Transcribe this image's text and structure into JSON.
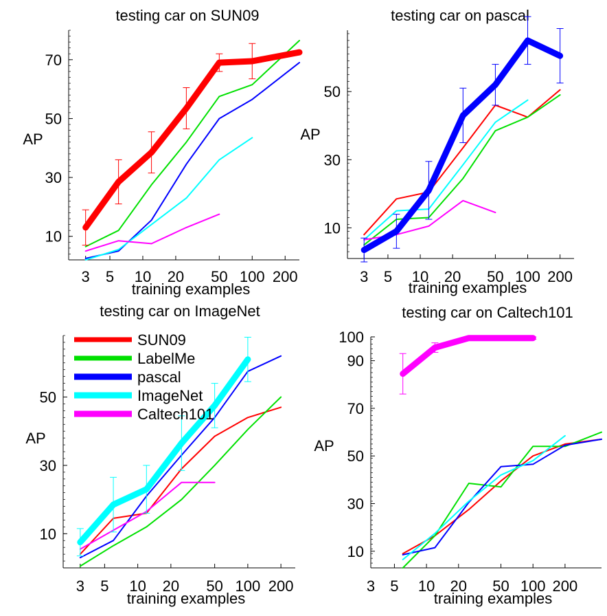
{
  "colors": {
    "SUN09": "#ff0000",
    "LabelMe": "#00e000",
    "pascal": "#0000ff",
    "ImageNet": "#00ffff",
    "Caltech101": "#ff00ff"
  },
  "legend": {
    "placement": "top-left of testing car on ImageNet panel",
    "entries": [
      "SUN09",
      "LabelMe",
      "pascal",
      "ImageNet",
      "Caltech101"
    ]
  },
  "chart_data": [
    {
      "type": "line",
      "title": "testing car on SUN09",
      "xlabel": "training examples",
      "ylabel": "AP",
      "xscale": "log",
      "xticks": [
        "3",
        "5",
        "10",
        "20",
        "50",
        "100",
        "200"
      ],
      "xlim": [
        2.1,
        270
      ],
      "yticks": [
        "10",
        "30",
        "50",
        "70"
      ],
      "ylim": [
        2,
        80
      ],
      "highlight": "SUN09",
      "series": [
        {
          "name": "SUN09",
          "x": [
            3,
            6,
            12,
            25,
            50,
            100,
            270
          ],
          "y": [
            13,
            28.5,
            38.5,
            53.5,
            69,
            69.5,
            72.5
          ],
          "err": [
            6,
            7.5,
            7,
            7,
            3,
            6,
            0
          ]
        },
        {
          "name": "LabelMe",
          "x": [
            3,
            6,
            12,
            25,
            50,
            100,
            270
          ],
          "y": [
            6.5,
            12,
            27.5,
            42,
            57.5,
            61.5,
            76.5
          ]
        },
        {
          "name": "pascal",
          "x": [
            3,
            6,
            12,
            25,
            50,
            100,
            270
          ],
          "y": [
            2.5,
            5,
            15.5,
            34.5,
            50,
            56.5,
            69
          ]
        },
        {
          "name": "ImageNet",
          "x": [
            3,
            6,
            12,
            25,
            50,
            100
          ],
          "y": [
            2,
            5.5,
            14,
            23,
            36,
            43.5
          ]
        },
        {
          "name": "Caltech101",
          "x": [
            3,
            6,
            12,
            25,
            50
          ],
          "y": [
            5,
            8.5,
            7.5,
            13,
            17.5
          ]
        }
      ]
    },
    {
      "type": "line",
      "title": "testing car on pascal",
      "xlabel": "training examples",
      "ylabel": "AP",
      "xscale": "log",
      "xticks": [
        "3",
        "5",
        "10",
        "20",
        "50",
        "100",
        "200"
      ],
      "xlim": [
        2.1,
        270
      ],
      "yticks": [
        "10",
        "30",
        "50"
      ],
      "ylim": [
        1,
        68
      ],
      "highlight": "pascal",
      "series": [
        {
          "name": "SUN09",
          "x": [
            3,
            6,
            12,
            25,
            50,
            100,
            200
          ],
          "y": [
            8,
            18.5,
            20.5,
            33.5,
            46,
            42.5,
            50.5
          ]
        },
        {
          "name": "LabelMe",
          "x": [
            3,
            6,
            12,
            25,
            50,
            100,
            200
          ],
          "y": [
            5,
            12.5,
            13,
            24.5,
            38.5,
            42.5,
            49
          ]
        },
        {
          "name": "pascal",
          "x": [
            3,
            6,
            12,
            25,
            50,
            100,
            200
          ],
          "y": [
            3.5,
            9,
            21,
            43,
            52,
            65,
            60.5
          ],
          "err": [
            3.5,
            5,
            8.5,
            8,
            6,
            7,
            8
          ]
        },
        {
          "name": "ImageNet",
          "x": [
            3,
            6,
            12,
            25,
            50,
            100
          ],
          "y": [
            6.5,
            15,
            15.5,
            28.5,
            41,
            47.5
          ]
        },
        {
          "name": "Caltech101",
          "x": [
            3,
            6,
            12,
            25,
            50
          ],
          "y": [
            6.5,
            8,
            10.5,
            18,
            14.5
          ]
        }
      ]
    },
    {
      "type": "line",
      "title": "testing car on ImageNet",
      "xlabel": "training examples",
      "ylabel": "AP",
      "xscale": "log",
      "xticks": [
        "3",
        "5",
        "10",
        "20",
        "50",
        "100",
        "200"
      ],
      "xlim": [
        2.1,
        270
      ],
      "yticks": [
        "10",
        "30",
        "50"
      ],
      "ylim": [
        0,
        68
      ],
      "highlight": "ImageNet",
      "series": [
        {
          "name": "SUN09",
          "x": [
            3,
            6,
            12,
            25,
            50,
            100,
            200
          ],
          "y": [
            4,
            14.5,
            16,
            29,
            38.5,
            44,
            47
          ]
        },
        {
          "name": "LabelMe",
          "x": [
            3,
            6,
            12,
            25,
            50,
            100,
            200
          ],
          "y": [
            0.5,
            6.5,
            12,
            20,
            30,
            40.5,
            50
          ]
        },
        {
          "name": "pascal",
          "x": [
            3,
            6,
            12,
            25,
            50,
            100,
            200
          ],
          "y": [
            3,
            8,
            21,
            33,
            44,
            57.5,
            62
          ]
        },
        {
          "name": "ImageNet",
          "x": [
            3,
            6,
            12,
            25,
            50,
            100
          ],
          "y": [
            7.5,
            18.5,
            23,
            36.5,
            47.5,
            61
          ],
          "err": [
            4,
            8,
            7,
            8,
            6.5,
            6.5
          ]
        },
        {
          "name": "Caltech101",
          "x": [
            3,
            6,
            12,
            25,
            50
          ],
          "y": [
            5.5,
            11,
            16.5,
            25,
            25
          ]
        }
      ]
    },
    {
      "type": "line",
      "title": "testing car on Caltech101",
      "xlabel": "training examples",
      "xlabel_note": "",
      "ylabel": "AP",
      "xscale": "log",
      "xticks": [
        "3",
        "5",
        "10",
        "20",
        "50",
        "100",
        "200"
      ],
      "xlim": [
        3,
        440
      ],
      "yticks": [
        "10",
        "30",
        "50",
        "70",
        "90",
        "100"
      ],
      "ylim": [
        3,
        100
      ],
      "highlight": "Caltech101",
      "series": [
        {
          "name": "SUN09",
          "x": [
            6,
            12,
            25,
            50,
            100,
            200,
            440
          ],
          "y": [
            9,
            16.5,
            27.5,
            39.5,
            50,
            55,
            57
          ]
        },
        {
          "name": "LabelMe",
          "x": [
            6,
            12,
            25,
            50,
            100,
            200,
            440
          ],
          "y": [
            3,
            16.5,
            38.5,
            37,
            54,
            54,
            60
          ]
        },
        {
          "name": "pascal",
          "x": [
            6,
            12,
            25,
            50,
            100,
            200,
            440
          ],
          "y": [
            8.5,
            11.5,
            30.5,
            45.5,
            46.5,
            54.5,
            57
          ]
        },
        {
          "name": "ImageNet",
          "x": [
            6,
            12,
            25,
            50,
            100,
            200
          ],
          "y": [
            6.5,
            17.5,
            31,
            42,
            48,
            58.5
          ]
        },
        {
          "name": "Caltech101",
          "x": [
            6,
            12,
            25,
            50,
            100
          ],
          "y": [
            84.5,
            95.5,
            99.5,
            99.5,
            99.5
          ],
          "err": [
            8.5,
            2,
            0.5,
            0.5,
            0.5
          ]
        }
      ]
    }
  ]
}
